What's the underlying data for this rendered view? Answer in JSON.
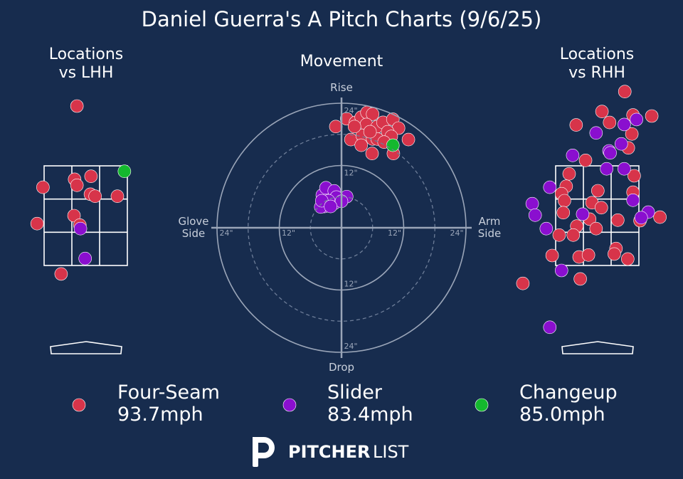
{
  "title": "Daniel Guerra's A Pitch Charts (9/6/25)",
  "chart_data": [
    {
      "type": "location",
      "title": "Locations vs LHH",
      "xlim": [
        -1.4,
        1.4
      ],
      "ylim": [
        0,
        5.2
      ],
      "series": [
        {
          "color": "#d7344a",
          "x": [
            -0.15,
            -0.19,
            0.09,
            -0.15,
            -0.73,
            0.08,
            0.16,
            0.54,
            -0.2,
            -0.83,
            -0.42,
            -0.1
          ],
          "values": [
            4.7,
            3.23,
            3.29,
            3.11,
            3.07,
            2.93,
            2.89,
            2.89,
            2.5,
            2.34,
            1.33,
            2.31
          ]
        },
        {
          "color": "#8a0fcf",
          "x": [
            -0.09,
            -0.01
          ],
          "values": [
            2.24,
            1.64
          ]
        },
        {
          "color": "#14b82e",
          "x": [
            0.66
          ],
          "values": [
            3.39
          ]
        }
      ]
    },
    {
      "type": "movement",
      "title": "Movement",
      "xlim": [
        -24,
        24
      ],
      "ylim": [
        -24,
        24
      ],
      "axis_labels": {
        "top": "Rise",
        "bottom": "Drop",
        "left": "Glove Side",
        "right": "Arm Side"
      },
      "rticks": [
        {
          "value": 12,
          "label": "12\""
        },
        {
          "value": 24,
          "label": "24\""
        }
      ],
      "minor_rticks": [
        6,
        18
      ],
      "series": [
        {
          "name": "Four-Seam",
          "velocity": {
            "value": 93.7,
            "label": "93.7mph"
          },
          "color": "#d7344a",
          "x": [
            -1.1,
            1.0,
            2.7,
            3.8,
            4.9,
            6.0,
            4.8,
            6.9,
            8.0,
            9.9,
            11.0,
            8.9,
            9.6,
            12.9,
            1.8,
            4.0,
            3.8,
            6.0,
            6.9,
            5.9,
            10.0,
            8.2,
            5.5,
            2.5
          ],
          "values": [
            19.5,
            21.0,
            20.3,
            21.3,
            22.2,
            21.9,
            19.9,
            19.5,
            20.3,
            20.9,
            19.2,
            18.5,
            17.6,
            17.0,
            17.0,
            17.8,
            15.9,
            17.1,
            17.1,
            14.3,
            14.3,
            16.5,
            18.5,
            19.5
          ]
        },
        {
          "name": "Slider",
          "velocity": {
            "value": 83.4,
            "label": "83.4mph"
          },
          "color": "#8a0fcf",
          "x": [
            -3.7,
            -3.0,
            -1.4,
            1.0,
            -1.4,
            -3.3,
            -4.0,
            -1.0,
            -2.5,
            0.0,
            -3.8,
            -2.1
          ],
          "values": [
            6.3,
            7.7,
            7.1,
            6.0,
            4.7,
            4.1,
            4.0,
            5.9,
            5.2,
            5.1,
            5.2,
            4.1
          ]
        },
        {
          "name": "Changeup",
          "velocity": {
            "value": 85.0,
            "label": "85.0mph"
          },
          "color": "#14b82e",
          "x": [
            9.9
          ],
          "values": [
            15.9
          ]
        }
      ]
    },
    {
      "type": "location",
      "title": "Locations vs RHH",
      "xlim": [
        -1.4,
        1.4
      ],
      "ylim": [
        0,
        5.2
      ],
      "series": [
        {
          "color": "#d7344a",
          "x": [
            0.47,
            0.08,
            0.21,
            0.61,
            0.93,
            -0.36,
            0.59,
            0.53,
            -0.2,
            -0.48,
            0.63,
            -0.53,
            0.01,
            -0.61,
            0.61,
            -0.56,
            -0.09,
            0.07,
            -0.58,
            0.35,
            -0.13,
            -0.35,
            -0.02,
            -0.65,
            -0.41,
            0.32,
            1.07,
            0.73,
            -0.77,
            -0.31,
            -0.15,
            0.29,
            0.52,
            -0.29,
            -1.27
          ],
          "values": [
            4.99,
            4.59,
            4.37,
            4.52,
            4.5,
            4.32,
            4.14,
            3.86,
            3.61,
            3.34,
            3.3,
            3.09,
            3.0,
            2.94,
            2.97,
            2.8,
            2.76,
            2.66,
            2.56,
            2.41,
            2.43,
            2.29,
            2.24,
            2.11,
            2.11,
            1.84,
            2.47,
            2.4,
            1.7,
            1.67,
            1.71,
            1.73,
            1.63,
            1.23,
            1.14
          ]
        },
        {
          "color": "#8a0fcf",
          "x": [
            0.67,
            0.46,
            -0.02,
            0.41,
            0.2,
            0.22,
            -0.42,
            0.16,
            0.46,
            -0.81,
            0.61,
            -1.11,
            -1.06,
            -0.25,
            0.87,
            0.75,
            -0.87,
            -0.61,
            -0.81
          ],
          "values": [
            4.43,
            4.33,
            4.16,
            3.94,
            3.8,
            3.76,
            3.71,
            3.44,
            3.44,
            3.07,
            2.81,
            2.74,
            2.51,
            2.53,
            2.57,
            2.46,
            2.24,
            1.4,
            0.26
          ]
        },
        {
          "color": "#14b82e",
          "x": [],
          "values": []
        }
      ]
    }
  ],
  "logo": {
    "bold": "PITCHER",
    "light": "LIST"
  }
}
